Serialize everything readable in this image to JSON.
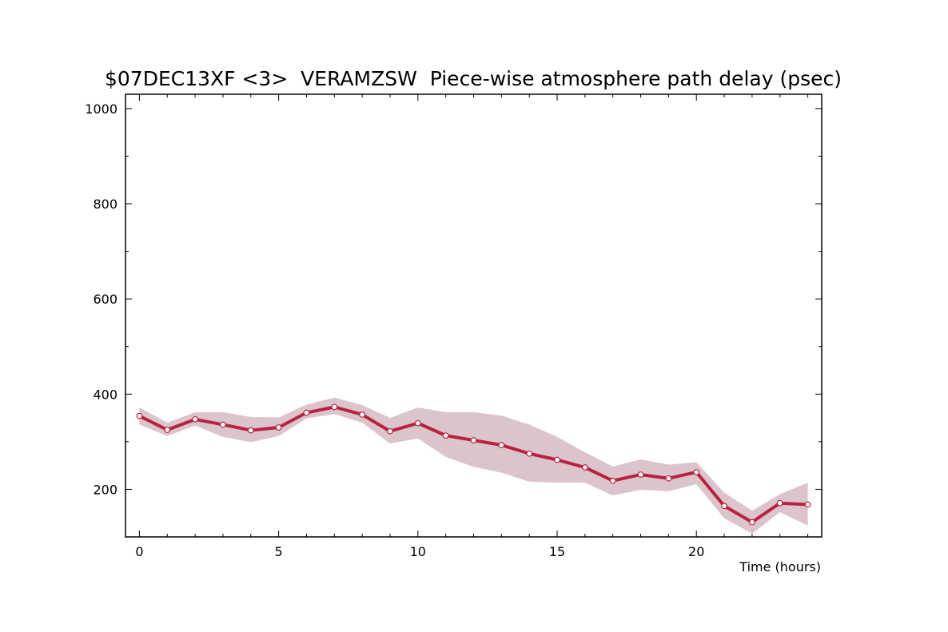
{
  "chart_data": {
    "type": "line",
    "title": "$07DEC13XF <3>  VERAMZSW  Piece-wise atmosphere path delay (psec)",
    "xlabel": "Time (hours)",
    "ylabel": "",
    "xlim": [
      -0.5,
      24.5
    ],
    "ylim": [
      100,
      1030
    ],
    "x_ticks": [
      0,
      5,
      10,
      15,
      20
    ],
    "y_ticks": [
      200,
      400,
      600,
      800,
      1000
    ],
    "grid": false,
    "colors": {
      "line": "#b8223f",
      "band": "#dcc5ca",
      "axis": "#000000",
      "marker_fill": "#ffffff"
    },
    "series": [
      {
        "x": [
          0,
          1,
          2,
          3,
          4,
          5,
          6,
          7,
          8,
          9,
          10,
          11,
          12,
          13,
          14,
          15,
          16,
          17,
          18,
          19,
          20,
          21,
          22,
          23,
          24
        ],
        "values": [
          354,
          325,
          347,
          336,
          324,
          330,
          361,
          373,
          357,
          322,
          339,
          313,
          303,
          293,
          275,
          262,
          246,
          218,
          231,
          223,
          236,
          165,
          131,
          171,
          168
        ],
        "upper": [
          372,
          340,
          362,
          362,
          352,
          351,
          378,
          393,
          377,
          350,
          372,
          362,
          362,
          355,
          336,
          310,
          278,
          248,
          263,
          252,
          257,
          193,
          155,
          190,
          214
        ],
        "lower": [
          336,
          312,
          334,
          310,
          299,
          312,
          349,
          358,
          340,
          296,
          307,
          268,
          247,
          235,
          216,
          214,
          214,
          187,
          199,
          196,
          211,
          139,
          107,
          152,
          124
        ]
      }
    ]
  }
}
